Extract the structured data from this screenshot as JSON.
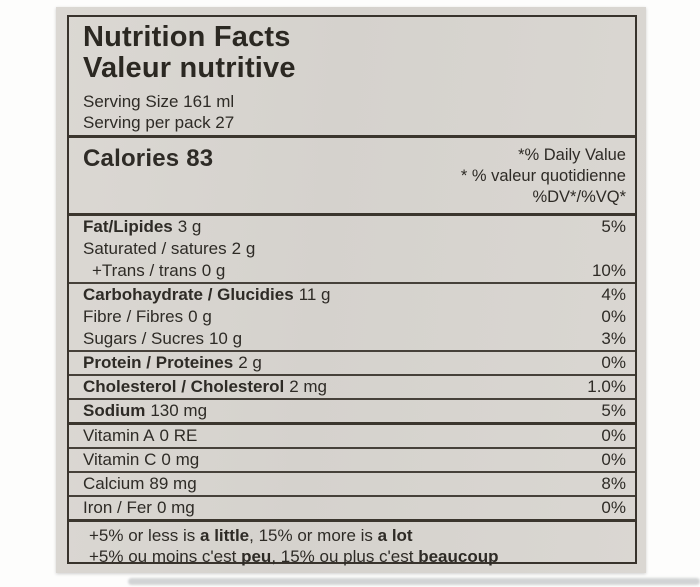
{
  "colors": {
    "paper": "#d8d5d0",
    "ink": "#2e2b26",
    "rule": "#38332c"
  },
  "label": {
    "title_en": "Nutrition Facts",
    "title_fr": "Valeur nutritive",
    "serving_size": "Serving Size 161 ml",
    "servings_per_pack": "Serving per pack 27",
    "calories_label": "Calories",
    "calories_value": "83",
    "daily_value_lines": {
      "en": "*% Daily Value",
      "fr": "* % valeur quotidienne",
      "abbr": "%DV*/%VQ*"
    },
    "rows": [
      {
        "name": "Fat/Lipides",
        "amount": "3 g",
        "percent": "5%"
      },
      {
        "name": "Saturated / satures",
        "amount": "2 g",
        "percent": ""
      },
      {
        "name": "+Trans / trans",
        "amount": "0 g",
        "percent": "10%"
      },
      {
        "name": "Carbohaydrate / Glucidies",
        "amount": "11 g",
        "percent": "4%"
      },
      {
        "name": "Fibre / Fibres",
        "amount": "0 g",
        "percent": "0%"
      },
      {
        "name": "Sugars / Sucres",
        "amount": "10 g",
        "percent": "3%"
      },
      {
        "name": "Protein / Proteines",
        "amount": "2 g",
        "percent": "0%"
      },
      {
        "name": "Cholesterol / Cholesterol",
        "amount": "2 mg",
        "percent": "1.0%"
      },
      {
        "name": "Sodium",
        "amount": "130 mg",
        "percent": "5%"
      },
      {
        "name": "Vitamin A",
        "amount": "0 RE",
        "percent": "0%"
      },
      {
        "name": "Vitamin C",
        "amount": "0 mg",
        "percent": "0%"
      },
      {
        "name": "Calcium",
        "amount": "89 mg",
        "percent": "8%"
      },
      {
        "name": "Iron / Fer",
        "amount": "0 mg",
        "percent": "0%"
      }
    ],
    "footnote_en": {
      "pre": "+5% or less is ",
      "bold1": "a little",
      "mid": ", 15% or more is ",
      "bold2": "a lot"
    },
    "footnote_fr": {
      "pre": "+5% ou moins c'est ",
      "bold1": "peu",
      "mid": ", 15% ou plus c'est ",
      "bold2": "beaucoup"
    }
  }
}
